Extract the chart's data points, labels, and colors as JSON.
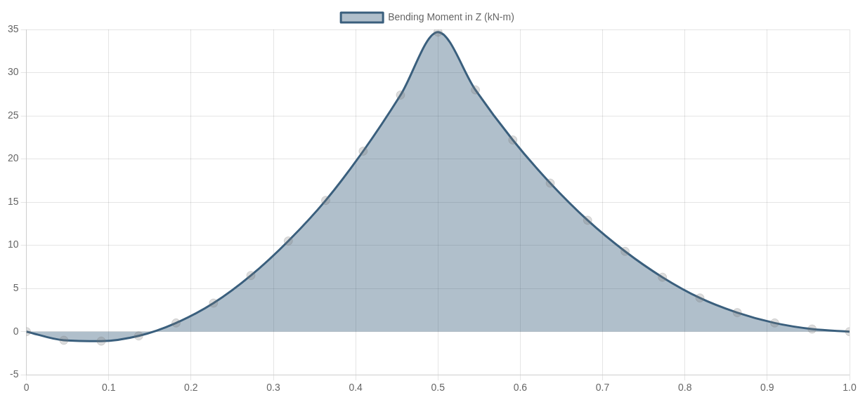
{
  "chart_data": {
    "type": "area",
    "xlim": [
      0,
      1
    ],
    "xticks": [
      0,
      0.1,
      0.2,
      0.3,
      0.4,
      0.5,
      0.6,
      0.7,
      0.8,
      0.9,
      {
        "value": 1,
        "label": "1.0"
      }
    ],
    "ylim": [
      -5,
      35
    ],
    "yticks": [
      -5,
      0,
      5,
      10,
      15,
      20,
      25,
      30,
      35
    ],
    "grid": true,
    "legend": "top",
    "marker": "circle",
    "line_style": "solid",
    "x": [
      0,
      0.0455,
      0.0909,
      0.1364,
      0.1818,
      0.2273,
      0.2727,
      0.3182,
      0.3636,
      0.4091,
      0.4545,
      0.5,
      0.5455,
      0.5909,
      0.6364,
      0.6818,
      0.7273,
      0.7727,
      0.8182,
      0.8636,
      0.9091,
      0.9545,
      1
    ],
    "series": [
      {
        "name": "Bending Moment in Z (kN-m)",
        "color": "#3a5f7d",
        "values": [
          0,
          -1.0,
          -1.1,
          -0.5,
          1.0,
          3.3,
          6.5,
          10.5,
          15.2,
          20.9,
          27.4,
          34.7,
          28.0,
          22.2,
          17.2,
          12.9,
          9.3,
          6.3,
          3.9,
          2.2,
          1.0,
          0.3,
          0
        ]
      }
    ]
  }
}
